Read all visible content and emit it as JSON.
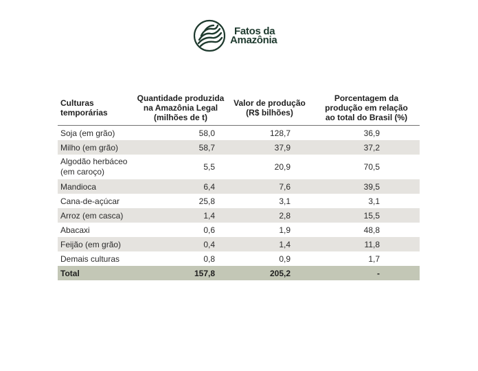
{
  "logo": {
    "line1": "Fatos da",
    "line2": "Amazônia",
    "color": "#1e3a2e"
  },
  "table": {
    "headers": [
      [
        "Culturas",
        "temporárias"
      ],
      [
        "Quantidade produzida",
        "na Amazônia Legal",
        "(milhões de t)"
      ],
      [
        "Valor de produção",
        "(R$ bilhões)"
      ],
      [
        "Porcentagem da",
        "produção em relação",
        "ao total do Brasil (%)"
      ]
    ],
    "rows": [
      {
        "crop": [
          "Soja (em grão)"
        ],
        "quantity": "58,0",
        "value": "128,7",
        "percent": "36,9"
      },
      {
        "crop": [
          "Milho (em grão)"
        ],
        "quantity": "58,7",
        "value": "37,9",
        "percent": "37,2"
      },
      {
        "crop": [
          "Algodão herbáceo",
          "(em caroço)"
        ],
        "quantity": "5,5",
        "value": "20,9",
        "percent": "70,5"
      },
      {
        "crop": [
          "Mandioca"
        ],
        "quantity": "6,4",
        "value": "7,6",
        "percent": "39,5"
      },
      {
        "crop": [
          "Cana-de-açúcar"
        ],
        "quantity": "25,8",
        "value": "3,1",
        "percent": "3,1"
      },
      {
        "crop": [
          "Arroz (em casca)"
        ],
        "quantity": "1,4",
        "value": "2,8",
        "percent": "15,5"
      },
      {
        "crop": [
          "Abacaxi"
        ],
        "quantity": "0,6",
        "value": "1,9",
        "percent": "48,8"
      },
      {
        "crop": [
          "Feijão (em grão)"
        ],
        "quantity": "0,4",
        "value": "1,4",
        "percent": "11,8"
      },
      {
        "crop": [
          "Demais culturas"
        ],
        "quantity": "0,8",
        "value": "0,9",
        "percent": "1,7"
      }
    ],
    "total": {
      "label": "Total",
      "quantity": "157,8",
      "value": "205,2",
      "percent": "-"
    },
    "colors": {
      "stripe": "#e5e3df",
      "total": "#c3c7b6"
    }
  }
}
